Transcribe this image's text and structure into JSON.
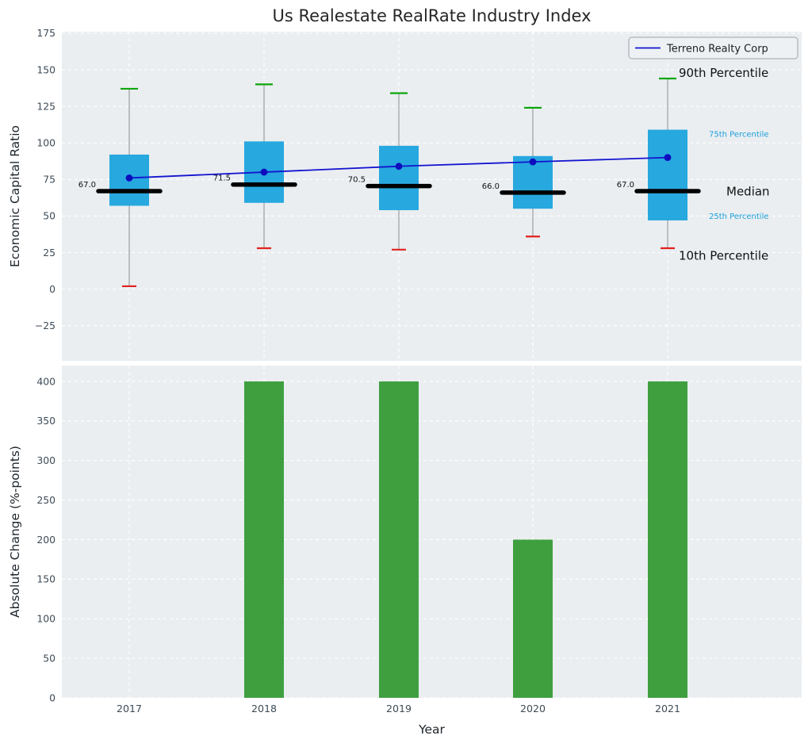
{
  "figure": {
    "title": "Us Realestate RealRate Industry Index",
    "axes_bg": "#eaeef1",
    "grid_color": "#ffffff",
    "tick_color": "#3d4b57"
  },
  "legend": {
    "label": "Terreno Realty Corp",
    "line_color": "#1414cf"
  },
  "chart_data": [
    {
      "type": "boxplot",
      "title": "Us Realestate RealRate Industry Index",
      "ylabel": "Economic Capital Ratio",
      "ylim": [
        -49,
        176
      ],
      "yticks": [
        -25,
        0,
        25,
        50,
        75,
        100,
        125,
        150,
        175
      ],
      "ytick_labels": [
        "−25",
        "0",
        "25",
        "50",
        "75",
        "100",
        "125",
        "150",
        "175"
      ],
      "categories": [
        "2017",
        "2018",
        "2019",
        "2020",
        "2021"
      ],
      "series": {
        "p10": [
          2,
          28,
          27,
          36,
          28
        ],
        "p25": [
          57,
          59,
          54,
          55,
          47
        ],
        "median": [
          67.0,
          71.5,
          70.5,
          66.0,
          67.0
        ],
        "p75": [
          92,
          101,
          98,
          91,
          109
        ],
        "p90": [
          137,
          140,
          134,
          124,
          144
        ],
        "terreno_realty_corp": [
          76,
          80,
          84,
          87,
          90
        ]
      },
      "median_labels": [
        "67.0",
        "71.5",
        "70.5",
        "66.0",
        "67.0"
      ],
      "annotations": [
        {
          "text": "90th Percentile",
          "value": 148,
          "color": "#111111",
          "size": 15
        },
        {
          "text": "75th Percentile",
          "value": 106,
          "color": "#1ba0d8",
          "size": 10
        },
        {
          "text": "Median",
          "value": 67,
          "color": "#111111",
          "size": 15
        },
        {
          "text": "25th Percentile",
          "value": 50,
          "color": "#1ba0d8",
          "size": 10
        },
        {
          "text": "10th Percentile",
          "value": 23,
          "color": "#111111",
          "size": 15
        }
      ],
      "colors": {
        "box": "#27a8df",
        "median": "#000000",
        "cap_top": "#0ca60c",
        "cap_bottom": "#e3211c",
        "whisker": "#8c8c8c",
        "line": "#1414cf",
        "dot": "#0d0dbe"
      },
      "legend_position": "upper right",
      "grid": true
    },
    {
      "type": "bar",
      "ylabel": "Absolute Change (%-points)",
      "xlabel": "Year",
      "ylim": [
        0,
        420
      ],
      "yticks": [
        0,
        50,
        100,
        150,
        200,
        250,
        300,
        350,
        400
      ],
      "ytick_labels": [
        "0",
        "50",
        "100",
        "150",
        "200",
        "250",
        "300",
        "350",
        "400"
      ],
      "categories": [
        "2017",
        "2018",
        "2019",
        "2020",
        "2021"
      ],
      "values": [
        0,
        400,
        400,
        200,
        400
      ],
      "bar_color": "#3f9f3f",
      "grid": true
    }
  ]
}
